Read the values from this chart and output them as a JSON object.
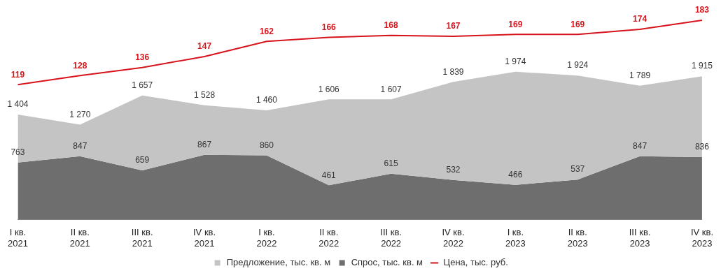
{
  "chart_data": {
    "type": "area",
    "categories": [
      "I кв. 2021",
      "II кв. 2021",
      "III кв. 2021",
      "IV кв. 2021",
      "I кв. 2022",
      "II кв. 2022",
      "III кв. 2022",
      "IV кв. 2022",
      "I кв. 2023",
      "II кв. 2023",
      "III кв. 2023",
      "IV кв. 2023"
    ],
    "series": [
      {
        "name": "Предложение, тыс. кв. м",
        "type": "area",
        "color": "#c4c4c4",
        "values": [
          1404,
          1270,
          1657,
          1528,
          1460,
          1606,
          1607,
          1839,
          1974,
          1924,
          1789,
          1915
        ]
      },
      {
        "name": "Спрос, тыс. кв. м",
        "type": "area",
        "color": "#6e6e6e",
        "values": [
          763,
          847,
          659,
          867,
          860,
          461,
          615,
          532,
          466,
          537,
          847,
          836
        ]
      },
      {
        "name": "Цена, тыс. руб.",
        "type": "line",
        "axis": "y2",
        "color": "#d7141c",
        "values": [
          119,
          128,
          136,
          147,
          162,
          166,
          168,
          167,
          169,
          169,
          174,
          183
        ]
      }
    ],
    "data_labels": true,
    "legend": "bottom",
    "grid": false
  }
}
